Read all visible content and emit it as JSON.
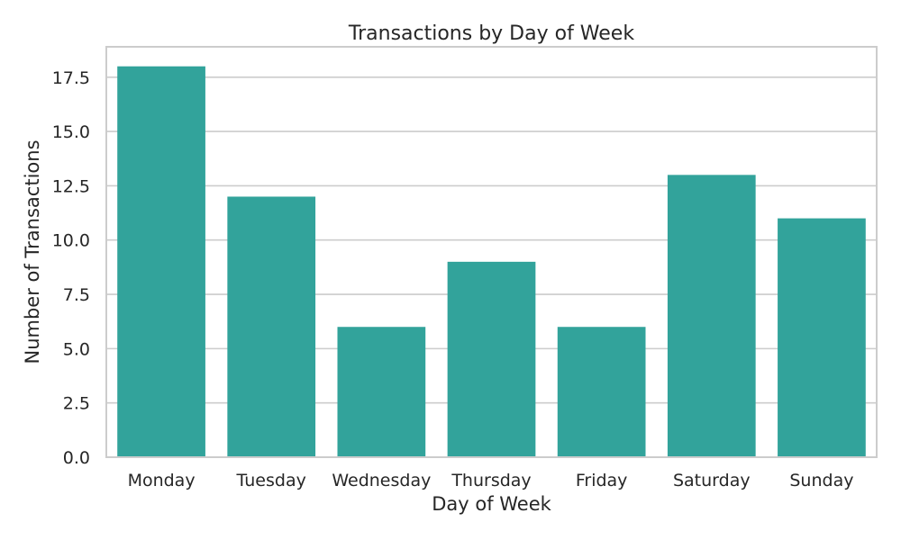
{
  "chart_data": {
    "type": "bar",
    "title": "Transactions by Day of Week",
    "xlabel": "Day of Week",
    "ylabel": "Number of Transactions",
    "categories": [
      "Monday",
      "Tuesday",
      "Wednesday",
      "Thursday",
      "Friday",
      "Saturday",
      "Sunday"
    ],
    "values": [
      18,
      12,
      6,
      9,
      6,
      13,
      11
    ],
    "ylim": [
      0,
      18.9
    ],
    "yticks": [
      0.0,
      2.5,
      5.0,
      7.5,
      10.0,
      12.5,
      15.0,
      17.5
    ],
    "ytick_labels": [
      "0.0",
      "2.5",
      "5.0",
      "7.5",
      "10.0",
      "12.5",
      "15.0",
      "17.5"
    ],
    "grid": "horizontal",
    "legend": "none",
    "bar_color": "#32a39b"
  }
}
